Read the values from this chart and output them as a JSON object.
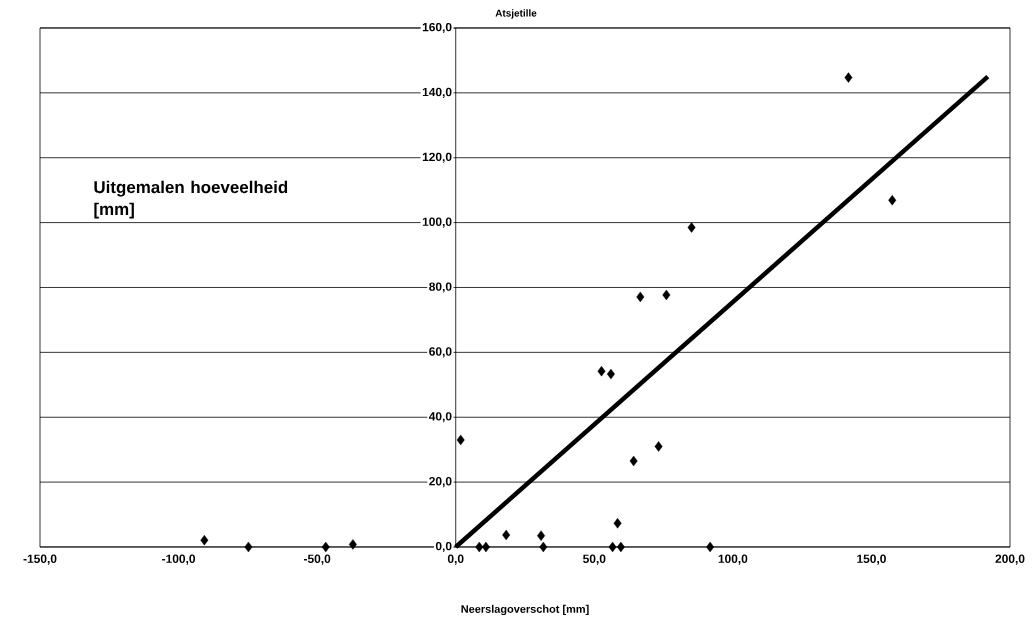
{
  "chart_data": {
    "type": "scatter",
    "title": "Atsjetille",
    "xlabel": "Neerslagoverschot [mm]",
    "ylabel": "Uitgemalen hoeveelheid [mm]",
    "xlim": [
      -150,
      200
    ],
    "ylim": [
      0,
      160
    ],
    "xticks": [
      {
        "value": -150,
        "label": "-150,0"
      },
      {
        "value": -100,
        "label": "-100,0"
      },
      {
        "value": -50,
        "label": "-50,0"
      },
      {
        "value": 0,
        "label": "0,0"
      },
      {
        "value": 50,
        "label": "50,0"
      },
      {
        "value": 100,
        "label": "100,0"
      },
      {
        "value": 150,
        "label": "150,0"
      },
      {
        "value": 200,
        "label": "200,0"
      }
    ],
    "yticks": [
      {
        "value": 0,
        "label": "0,0"
      },
      {
        "value": 20,
        "label": "20,0"
      },
      {
        "value": 40,
        "label": "40,0"
      },
      {
        "value": 60,
        "label": "60,0"
      },
      {
        "value": 80,
        "label": "80,0"
      },
      {
        "value": 100,
        "label": "100,0"
      },
      {
        "value": 120,
        "label": "120,0"
      },
      {
        "value": 140,
        "label": "140,0"
      },
      {
        "value": 160,
        "label": "160,0"
      }
    ],
    "grid": "y",
    "series": [
      {
        "type": "scatter",
        "marker": "diamond",
        "color": "#000000",
        "x": [
          -90.7,
          -74.8,
          -46.9,
          -37.1,
          1.8,
          8.5,
          10.9,
          18.2,
          30.8,
          31.6,
          52.6,
          56,
          56.6,
          58.4,
          59.6,
          64.2,
          66.6,
          73.2,
          76,
          85.1,
          91.8,
          141.7,
          157.5
        ],
        "values": [
          2.1,
          0,
          0,
          0.8,
          33,
          0,
          0,
          3.7,
          3.5,
          0,
          54.2,
          53.3,
          0,
          7.3,
          0,
          26.5,
          77.1,
          31,
          77.7,
          98.5,
          0,
          144.7,
          106.9
        ]
      },
      {
        "type": "line",
        "color": "#000000",
        "x": [
          0,
          192
        ],
        "values": [
          0,
          145
        ]
      }
    ]
  }
}
